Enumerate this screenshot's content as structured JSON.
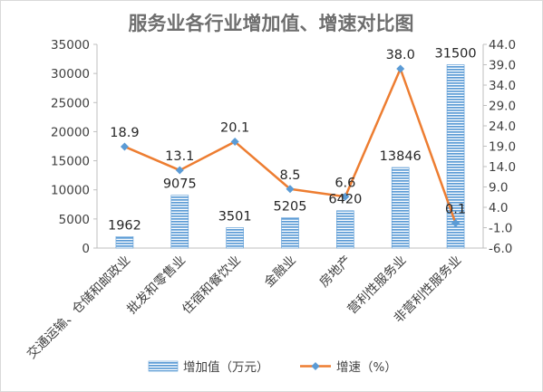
{
  "chart_data": {
    "type": "bar",
    "title": "服务业各行业增加值、增速对比图",
    "categories": [
      "交通运输、仓储和邮政业",
      "批发和零售业",
      "住宿和餐饮业",
      "金融业",
      "房地产",
      "营利性服务业",
      "非营利性服务业"
    ],
    "series": [
      {
        "name": "增加值（万元）",
        "type": "bar",
        "axis": "left",
        "values": [
          1962,
          9075,
          3501,
          5205,
          6420,
          13846,
          31500
        ],
        "color": "#5b9bd5"
      },
      {
        "name": "增速（%）",
        "type": "line",
        "axis": "right",
        "values": [
          18.9,
          13.1,
          20.1,
          8.5,
          6.6,
          38.0,
          0.1
        ],
        "color": "#ed7d31"
      }
    ],
    "y_left": {
      "min": 0,
      "max": 35000,
      "step": 5000
    },
    "y_right": {
      "min": -6.0,
      "max": 44.0,
      "step": 5.0,
      "decimals": 1
    },
    "grid": false,
    "legend_position": "bottom"
  }
}
